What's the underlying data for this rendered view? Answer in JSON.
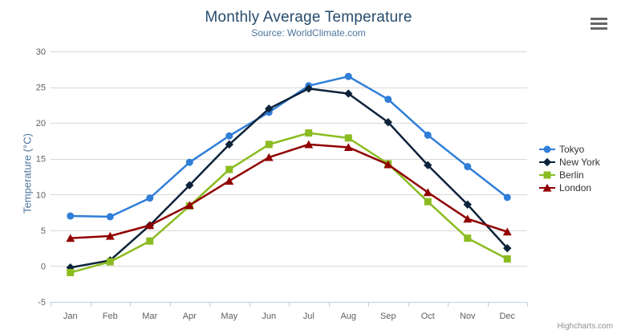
{
  "credits": "Highcharts.com",
  "icons": {
    "context_menu": "hamburger"
  },
  "chart_data": {
    "type": "line",
    "title": "Monthly Average Temperature",
    "subtitle": "Source: WorldClimate.com",
    "xlabel": "",
    "ylabel": "Temperature (°C)",
    "categories": [
      "Jan",
      "Feb",
      "Mar",
      "Apr",
      "May",
      "Jun",
      "Jul",
      "Aug",
      "Sep",
      "Oct",
      "Nov",
      "Dec"
    ],
    "ylim": [
      -5,
      30
    ],
    "ytick_interval": 5,
    "grid": true,
    "legend_position": "right",
    "series": [
      {
        "name": "Tokyo",
        "color": "#2f7ed8",
        "marker": "circle",
        "values": [
          7.0,
          6.9,
          9.5,
          14.5,
          18.2,
          21.5,
          25.2,
          26.5,
          23.3,
          18.3,
          13.9,
          9.6
        ]
      },
      {
        "name": "New York",
        "color": "#0d233a",
        "marker": "diamond",
        "values": [
          -0.2,
          0.8,
          5.7,
          11.3,
          17.0,
          22.0,
          24.8,
          24.1,
          20.1,
          14.1,
          8.6,
          2.5
        ]
      },
      {
        "name": "Berlin",
        "color": "#8bbc21",
        "marker": "square",
        "values": [
          -0.9,
          0.6,
          3.5,
          8.4,
          13.5,
          17.0,
          18.6,
          17.9,
          14.3,
          9.0,
          3.9,
          1.0
        ]
      },
      {
        "name": "London",
        "color": "#910000",
        "marker": "triangle",
        "values": [
          3.9,
          4.2,
          5.7,
          8.5,
          11.9,
          15.2,
          17.0,
          16.6,
          14.2,
          10.3,
          6.6,
          4.8
        ]
      }
    ],
    "axis_colors": {
      "labels": "#606060",
      "axis_line": "#c0d0e0",
      "gridline": "#d8d8d8",
      "axis_title": "#4d759e"
    }
  }
}
